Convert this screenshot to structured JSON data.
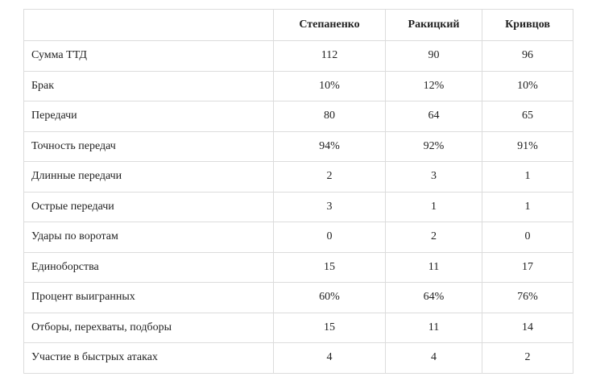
{
  "table": {
    "columns": [
      "",
      "Степаненко",
      "Ракицкий",
      "Кривцов"
    ],
    "rows": [
      {
        "label": "Сумма ТТД",
        "values": [
          "112",
          "90",
          "96"
        ]
      },
      {
        "label": "Брак",
        "values": [
          "10%",
          "12%",
          "10%"
        ]
      },
      {
        "label": "Передачи",
        "values": [
          "80",
          "64",
          "65"
        ]
      },
      {
        "label": "Точность передач",
        "values": [
          "94%",
          "92%",
          "91%"
        ]
      },
      {
        "label": "Длинные передачи",
        "values": [
          "2",
          "3",
          "1"
        ]
      },
      {
        "label": "Острые передачи",
        "values": [
          "3",
          "1",
          "1"
        ]
      },
      {
        "label": "Удары по воротам",
        "values": [
          "0",
          "2",
          "0"
        ]
      },
      {
        "label": "Единоборства",
        "values": [
          "15",
          "11",
          "17"
        ]
      },
      {
        "label": "Процент выигранных",
        "values": [
          "60%",
          "64%",
          "76%"
        ]
      },
      {
        "label": "Отборы, перехваты, подборы",
        "values": [
          "15",
          "11",
          "14"
        ]
      },
      {
        "label": "Участие в быстрых атаках",
        "values": [
          "4",
          "4",
          "2"
        ]
      }
    ]
  }
}
